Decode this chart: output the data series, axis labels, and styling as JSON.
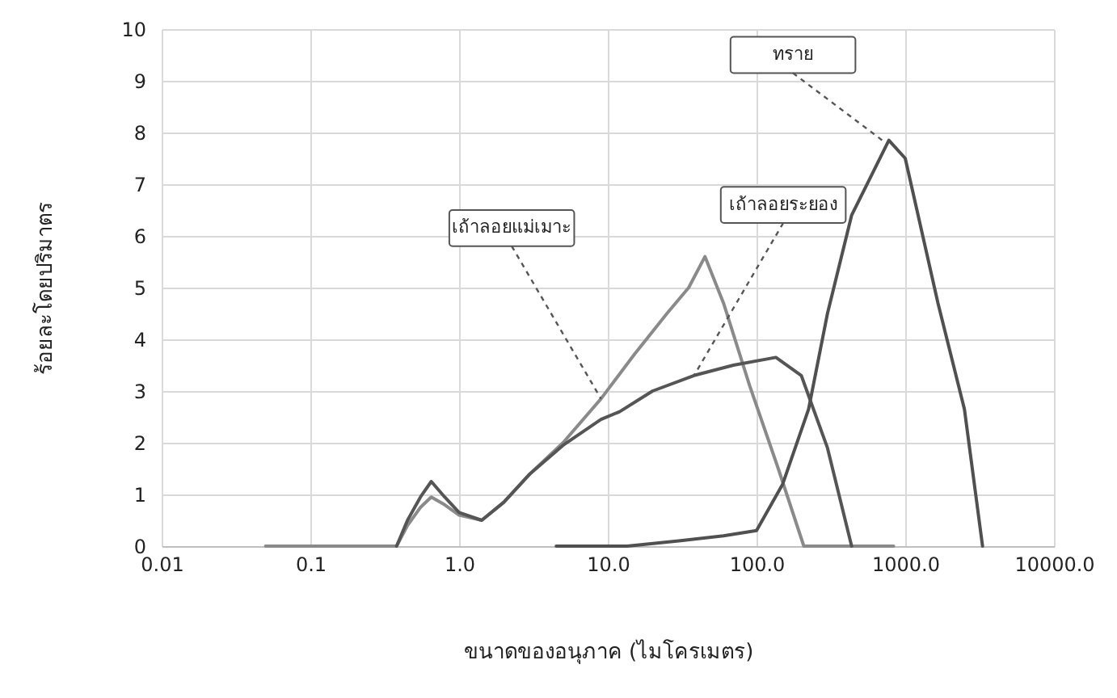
{
  "chart_data": {
    "type": "line",
    "xlabel": "ขนาดของอนุภาค (ไมโครเมตร)",
    "ylabel": "ร้อยละโดยปริมาตร",
    "log": "x",
    "xlim": [
      0.01,
      10000
    ],
    "xticks": [
      {
        "value": 0.01,
        "label": "0.01"
      },
      {
        "value": 0.1,
        "label": "0.1"
      },
      {
        "value": 1,
        "label": "1.0"
      },
      {
        "value": 10,
        "label": "10.0"
      },
      {
        "value": 100,
        "label": "100.0"
      },
      {
        "value": 1000,
        "label": "1000.0"
      },
      {
        "value": 10000,
        "label": "10000.0"
      }
    ],
    "ylim": [
      0,
      10
    ],
    "yticks": [
      0,
      1,
      2,
      3,
      4,
      5,
      6,
      7,
      8,
      9,
      10
    ],
    "grid": true,
    "marker": "none",
    "line_style": "solid",
    "series": [
      {
        "color": "#8a8a8a",
        "x": [
          0.05,
          0.38,
          0.45,
          0.55,
          0.65,
          0.8,
          1.0,
          1.42,
          2,
          3,
          5,
          9,
          15,
          25,
          35,
          45,
          60,
          90,
          140,
          208,
          400,
          835
        ],
        "values": [
          0,
          0,
          0.4,
          0.75,
          0.95,
          0.8,
          0.6,
          0.5,
          0.85,
          1.4,
          2.0,
          2.85,
          3.7,
          4.5,
          5.0,
          5.6,
          4.7,
          3.1,
          1.5,
          0,
          0,
          0
        ]
      },
      {
        "color": "#555555",
        "x": [
          0.38,
          0.45,
          0.55,
          0.65,
          0.8,
          1.0,
          1.42,
          2,
          3,
          5,
          9,
          12,
          20,
          38,
          70,
          135,
          200,
          300,
          436
        ],
        "values": [
          0,
          0.5,
          0.95,
          1.25,
          0.95,
          0.65,
          0.5,
          0.85,
          1.4,
          1.95,
          2.45,
          2.6,
          3.0,
          3.3,
          3.5,
          3.65,
          3.3,
          1.9,
          0
        ]
      },
      {
        "color": "#505050",
        "x": [
          4.5,
          13.5,
          30,
          60,
          100,
          150,
          224,
          300,
          436,
          600,
          776,
          1000,
          1660,
          2500,
          3310
        ],
        "values": [
          0,
          0,
          0.1,
          0.2,
          0.3,
          1.2,
          2.65,
          4.5,
          6.4,
          7.2,
          7.85,
          7.5,
          4.7,
          2.65,
          0
        ]
      }
    ],
    "annotations": [
      {
        "text": "เถ้าลอยแม่เมาะ",
        "x": 9,
        "y": 2.85
      },
      {
        "text": "เถ้าลอยระยอง",
        "x": 38,
        "y": 3.3
      },
      {
        "text": "ทราย",
        "x": 700,
        "y": 7.85
      }
    ]
  }
}
